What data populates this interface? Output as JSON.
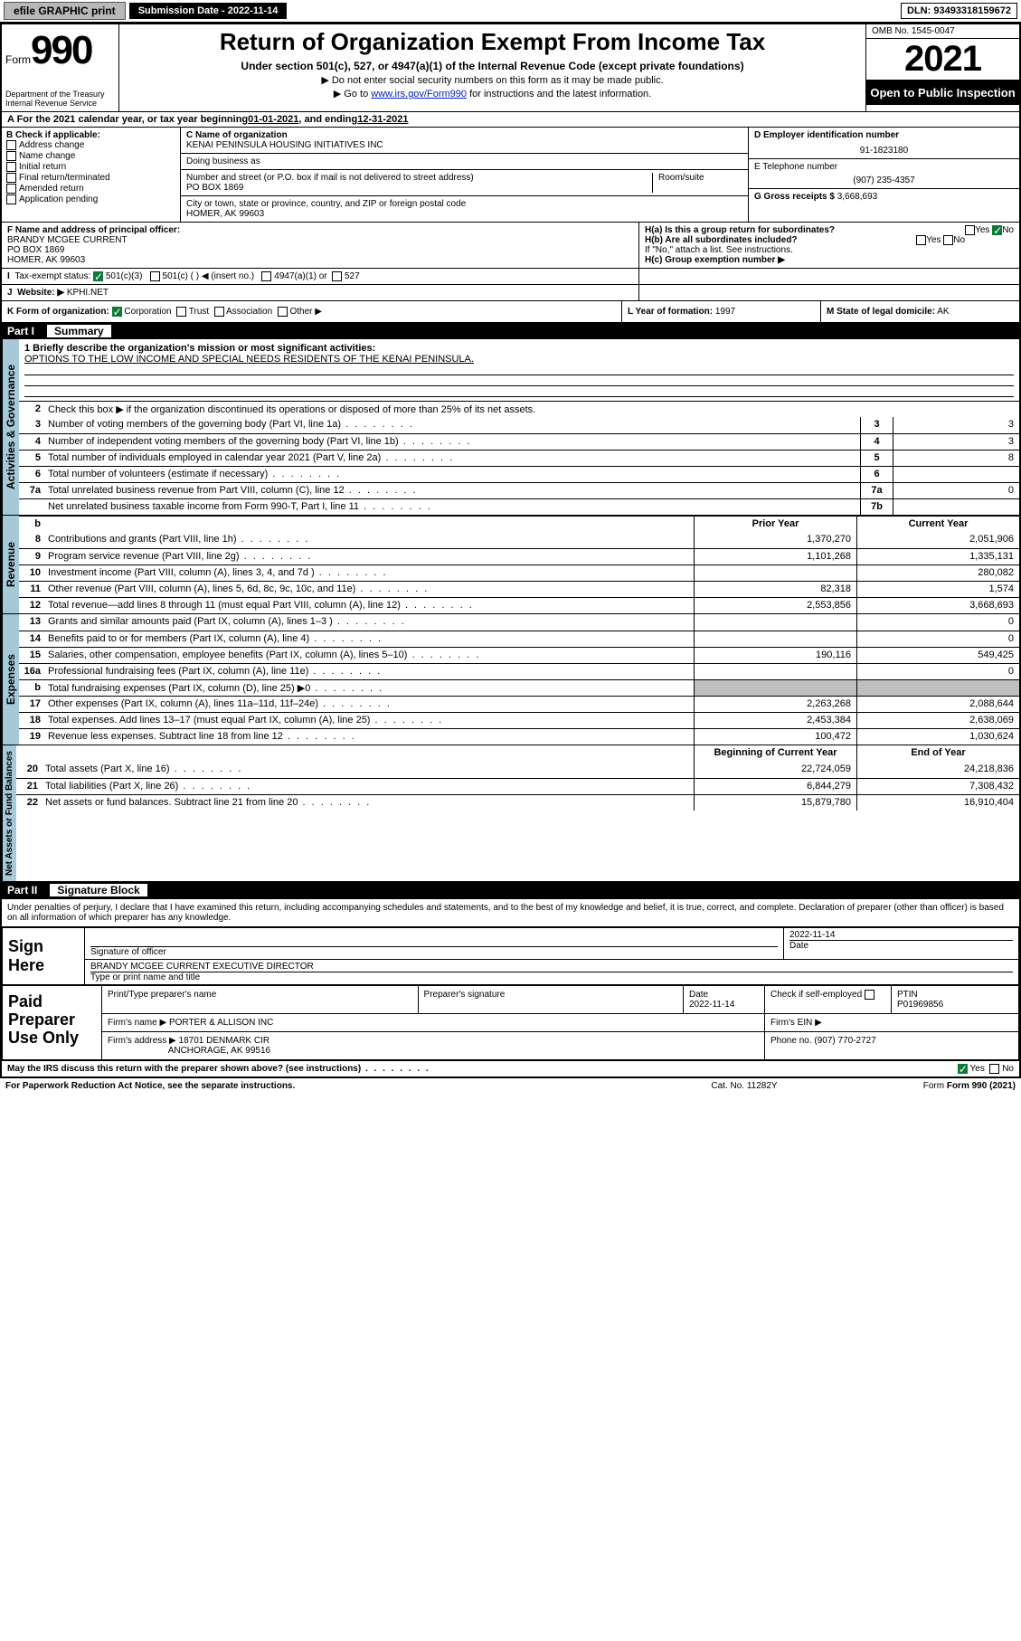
{
  "colors": {
    "sidebar": "#a6c8d8",
    "black": "#000000",
    "white": "#ffffff",
    "shade": "#bfbfbf",
    "link": "#0020c2",
    "green_check": "#0e7a3a",
    "btn_bg": "#b8b8b8"
  },
  "topbar": {
    "efile": "efile GRAPHIC print",
    "submission_label": "Submission Date - 2022-11-14",
    "dln": "DLN: 93493318159672"
  },
  "header": {
    "form_word": "Form",
    "form_num": "990",
    "title": "Return of Organization Exempt From Income Tax",
    "sub1": "Under section 501(c), 527, or 4947(a)(1) of the Internal Revenue Code (except private foundations)",
    "sub2": "▶ Do not enter social security numbers on this form as it may be made public.",
    "sub3_pre": "▶ Go to ",
    "sub3_link": "www.irs.gov/Form990",
    "sub3_post": " for instructions and the latest information.",
    "dept": "Department of the Treasury\nInternal Revenue Service",
    "omb": "OMB No. 1545-0047",
    "year": "2021",
    "open": "Open to Public Inspection"
  },
  "rowA": {
    "text_a": "A For the 2021 calendar year, or tax year beginning ",
    "begin": "01-01-2021",
    "text_b": " , and ending ",
    "end": "12-31-2021"
  },
  "boxB": {
    "label": "B Check if applicable:",
    "items": [
      "Address change",
      "Name change",
      "Initial return",
      "Final return/terminated",
      "Amended return",
      "Application pending"
    ]
  },
  "boxC": {
    "name_label": "C Name of organization",
    "name": "KENAI PENINSULA HOUSING INITIATIVES INC",
    "dba_label": "Doing business as",
    "street_label": "Number and street (or P.O. box if mail is not delivered to street address)",
    "room_label": "Room/suite",
    "street": "PO BOX 1869",
    "city_label": "City or town, state or province, country, and ZIP or foreign postal code",
    "city": "HOMER, AK  99603"
  },
  "boxD": {
    "label": "D Employer identification number",
    "value": "91-1823180"
  },
  "boxE": {
    "label": "E Telephone number",
    "value": "(907) 235-4357"
  },
  "boxG": {
    "label": "G Gross receipts $",
    "value": "3,668,693"
  },
  "boxF": {
    "label": "F Name and address of principal officer:",
    "name": "BRANDY MCGEE CURRENT",
    "addr1": "PO BOX 1869",
    "addr2": "HOMER, AK  99603"
  },
  "boxH": {
    "ha": "H(a)  Is this a group return for subordinates?",
    "ha_yes": "Yes",
    "ha_no": "No",
    "hb": "H(b)  Are all subordinates included?",
    "hb_yes": "Yes",
    "hb_no": "No",
    "hb_note": "If \"No,\" attach a list. See instructions.",
    "hc": "H(c)  Group exemption number ▶"
  },
  "rowI": {
    "label": "Tax-exempt status:",
    "o1": "501(c)(3)",
    "o2": "501(c) (   ) ◀ (insert no.)",
    "o3": "4947(a)(1) or",
    "o4": "527"
  },
  "rowJ": {
    "label": "Website: ▶",
    "value": "KPHI.NET"
  },
  "rowK": {
    "label": "K Form of organization:",
    "opts": [
      "Corporation",
      "Trust",
      "Association",
      "Other ▶"
    ],
    "l_label": "L Year of formation:",
    "l_value": "1997",
    "m_label": "M State of legal domicile:",
    "m_value": "AK"
  },
  "part1": {
    "num": "Part I",
    "title": "Summary",
    "brief_label": "1  Briefly describe the organization's mission or most significant activities:",
    "brief_text": "OPTIONS TO THE LOW INCOME AND SPECIAL NEEDS RESIDENTS OF THE KENAI PENINSULA.",
    "line2": "Check this box ▶      if the organization discontinued its operations or disposed of more than 25% of its net assets.",
    "governance_label": "Activities & Governance",
    "revenue_label": "Revenue",
    "expenses_label": "Expenses",
    "netassets_label": "Net Assets or Fund Balances",
    "gov_lines": [
      {
        "n": "3",
        "d": "Number of voting members of the governing body (Part VI, line 1a)",
        "lab": "3",
        "v": "3"
      },
      {
        "n": "4",
        "d": "Number of independent voting members of the governing body (Part VI, line 1b)",
        "lab": "4",
        "v": "3"
      },
      {
        "n": "5",
        "d": "Total number of individuals employed in calendar year 2021 (Part V, line 2a)",
        "lab": "5",
        "v": "8"
      },
      {
        "n": "6",
        "d": "Total number of volunteers (estimate if necessary)",
        "lab": "6",
        "v": ""
      },
      {
        "n": "7a",
        "d": "Total unrelated business revenue from Part VIII, column (C), line 12",
        "lab": "7a",
        "v": "0"
      },
      {
        "n": "",
        "d": "Net unrelated business taxable income from Form 990-T, Part I, line 11",
        "lab": "7b",
        "v": ""
      }
    ],
    "col_prior": "Prior Year",
    "col_current": "Current Year",
    "revenue_lines": [
      {
        "n": "8",
        "d": "Contributions and grants (Part VIII, line 1h)",
        "p": "1,370,270",
        "c": "2,051,906"
      },
      {
        "n": "9",
        "d": "Program service revenue (Part VIII, line 2g)",
        "p": "1,101,268",
        "c": "1,335,131"
      },
      {
        "n": "10",
        "d": "Investment income (Part VIII, column (A), lines 3, 4, and 7d )",
        "p": "",
        "c": "280,082"
      },
      {
        "n": "11",
        "d": "Other revenue (Part VIII, column (A), lines 5, 6d, 8c, 9c, 10c, and 11e)",
        "p": "82,318",
        "c": "1,574"
      },
      {
        "n": "12",
        "d": "Total revenue—add lines 8 through 11 (must equal Part VIII, column (A), line 12)",
        "p": "2,553,856",
        "c": "3,668,693"
      }
    ],
    "expense_lines": [
      {
        "n": "13",
        "d": "Grants and similar amounts paid (Part IX, column (A), lines 1–3 )",
        "p": "",
        "c": "0"
      },
      {
        "n": "14",
        "d": "Benefits paid to or for members (Part IX, column (A), line 4)",
        "p": "",
        "c": "0"
      },
      {
        "n": "15",
        "d": "Salaries, other compensation, employee benefits (Part IX, column (A), lines 5–10)",
        "p": "190,116",
        "c": "549,425"
      },
      {
        "n": "16a",
        "d": "Professional fundraising fees (Part IX, column (A), line 11e)",
        "p": "",
        "c": "0"
      },
      {
        "n": "b",
        "d": "Total fundraising expenses (Part IX, column (D), line 25) ▶0",
        "p": "shade",
        "c": "shade"
      },
      {
        "n": "17",
        "d": "Other expenses (Part IX, column (A), lines 11a–11d, 11f–24e)",
        "p": "2,263,268",
        "c": "2,088,644"
      },
      {
        "n": "18",
        "d": "Total expenses. Add lines 13–17 (must equal Part IX, column (A), line 25)",
        "p": "2,453,384",
        "c": "2,638,069"
      },
      {
        "n": "19",
        "d": "Revenue less expenses. Subtract line 18 from line 12",
        "p": "100,472",
        "c": "1,030,624"
      }
    ],
    "col_begin": "Beginning of Current Year",
    "col_end": "End of Year",
    "net_lines": [
      {
        "n": "20",
        "d": "Total assets (Part X, line 16)",
        "p": "22,724,059",
        "c": "24,218,836"
      },
      {
        "n": "21",
        "d": "Total liabilities (Part X, line 26)",
        "p": "6,844,279",
        "c": "7,308,432"
      },
      {
        "n": "22",
        "d": "Net assets or fund balances. Subtract line 21 from line 20",
        "p": "15,879,780",
        "c": "16,910,404"
      }
    ]
  },
  "part2": {
    "num": "Part II",
    "title": "Signature Block",
    "decl": "Under penalties of perjury, I declare that I have examined this return, including accompanying schedules and statements, and to the best of my knowledge and belief, it is true, correct, and complete. Declaration of preparer (other than officer) is based on all information of which preparer has any knowledge.",
    "sign_here": "Sign Here",
    "sig_officer_label": "Signature of officer",
    "date_label": "Date",
    "sig_date": "2022-11-14",
    "officer_name": "BRANDY MCGEE CURRENT  EXECUTIVE DIRECTOR",
    "officer_label": "Type or print name and title",
    "paid_label": "Paid Preparer Use Only",
    "prep_name_label": "Print/Type preparer's name",
    "prep_sig_label": "Preparer's signature",
    "prep_date": "2022-11-14",
    "check_if": "Check        if self-employed",
    "ptin_label": "PTIN",
    "ptin": "P01969856",
    "firm_name_label": "Firm's name    ▶",
    "firm_name": "PORTER & ALLISON INC",
    "firm_ein_label": "Firm's EIN ▶",
    "firm_addr_label": "Firm's address ▶",
    "firm_addr1": "18701 DENMARK CIR",
    "firm_addr2": "ANCHORAGE, AK  99516",
    "firm_phone_label": "Phone no.",
    "firm_phone": "(907) 770-2727",
    "discuss": "May the IRS discuss this return with the preparer shown above? (see instructions)",
    "yes": "Yes",
    "no": "No"
  },
  "footer": {
    "left": "For Paperwork Reduction Act Notice, see the separate instructions.",
    "mid": "Cat. No. 11282Y",
    "right": "Form 990 (2021)"
  }
}
